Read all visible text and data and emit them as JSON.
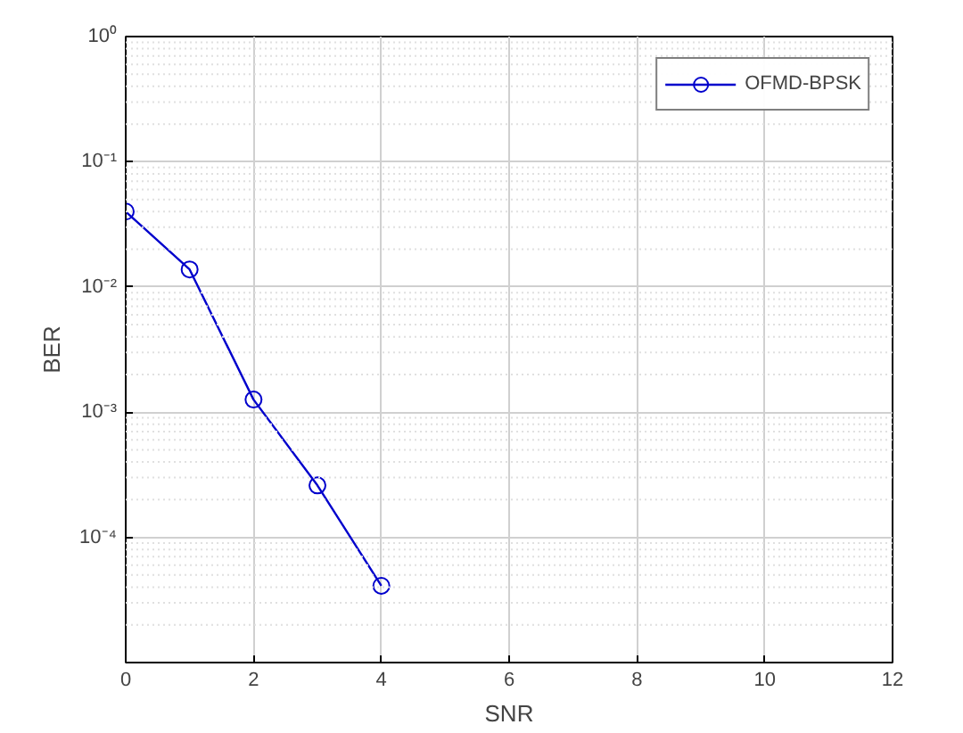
{
  "chart_data": {
    "type": "line",
    "xlabel": "SNR",
    "ylabel": "BER",
    "x": [
      0,
      1,
      2,
      3,
      4
    ],
    "series": [
      {
        "name": "OFMD-BPSK",
        "color": "#0000cc",
        "values": [
          0.04,
          0.0138,
          0.00126,
          0.00026,
          4.1e-05
        ]
      }
    ],
    "xlim": [
      0,
      12
    ],
    "xticks": [
      0,
      2,
      4,
      6,
      8,
      10,
      12
    ],
    "ylim": [
      1e-05,
      1
    ],
    "yticks": [
      {
        "value": 1,
        "label": "10⁰"
      },
      {
        "value": 0.1,
        "label": "10⁻¹"
      },
      {
        "value": 0.01,
        "label": "10⁻²"
      },
      {
        "value": 0.001,
        "label": "10⁻³"
      },
      {
        "value": 0.0001,
        "label": "10⁻⁴"
      }
    ],
    "log": "y",
    "grid": true,
    "legend": "top right",
    "marker": "circle",
    "line_style": "solid"
  }
}
